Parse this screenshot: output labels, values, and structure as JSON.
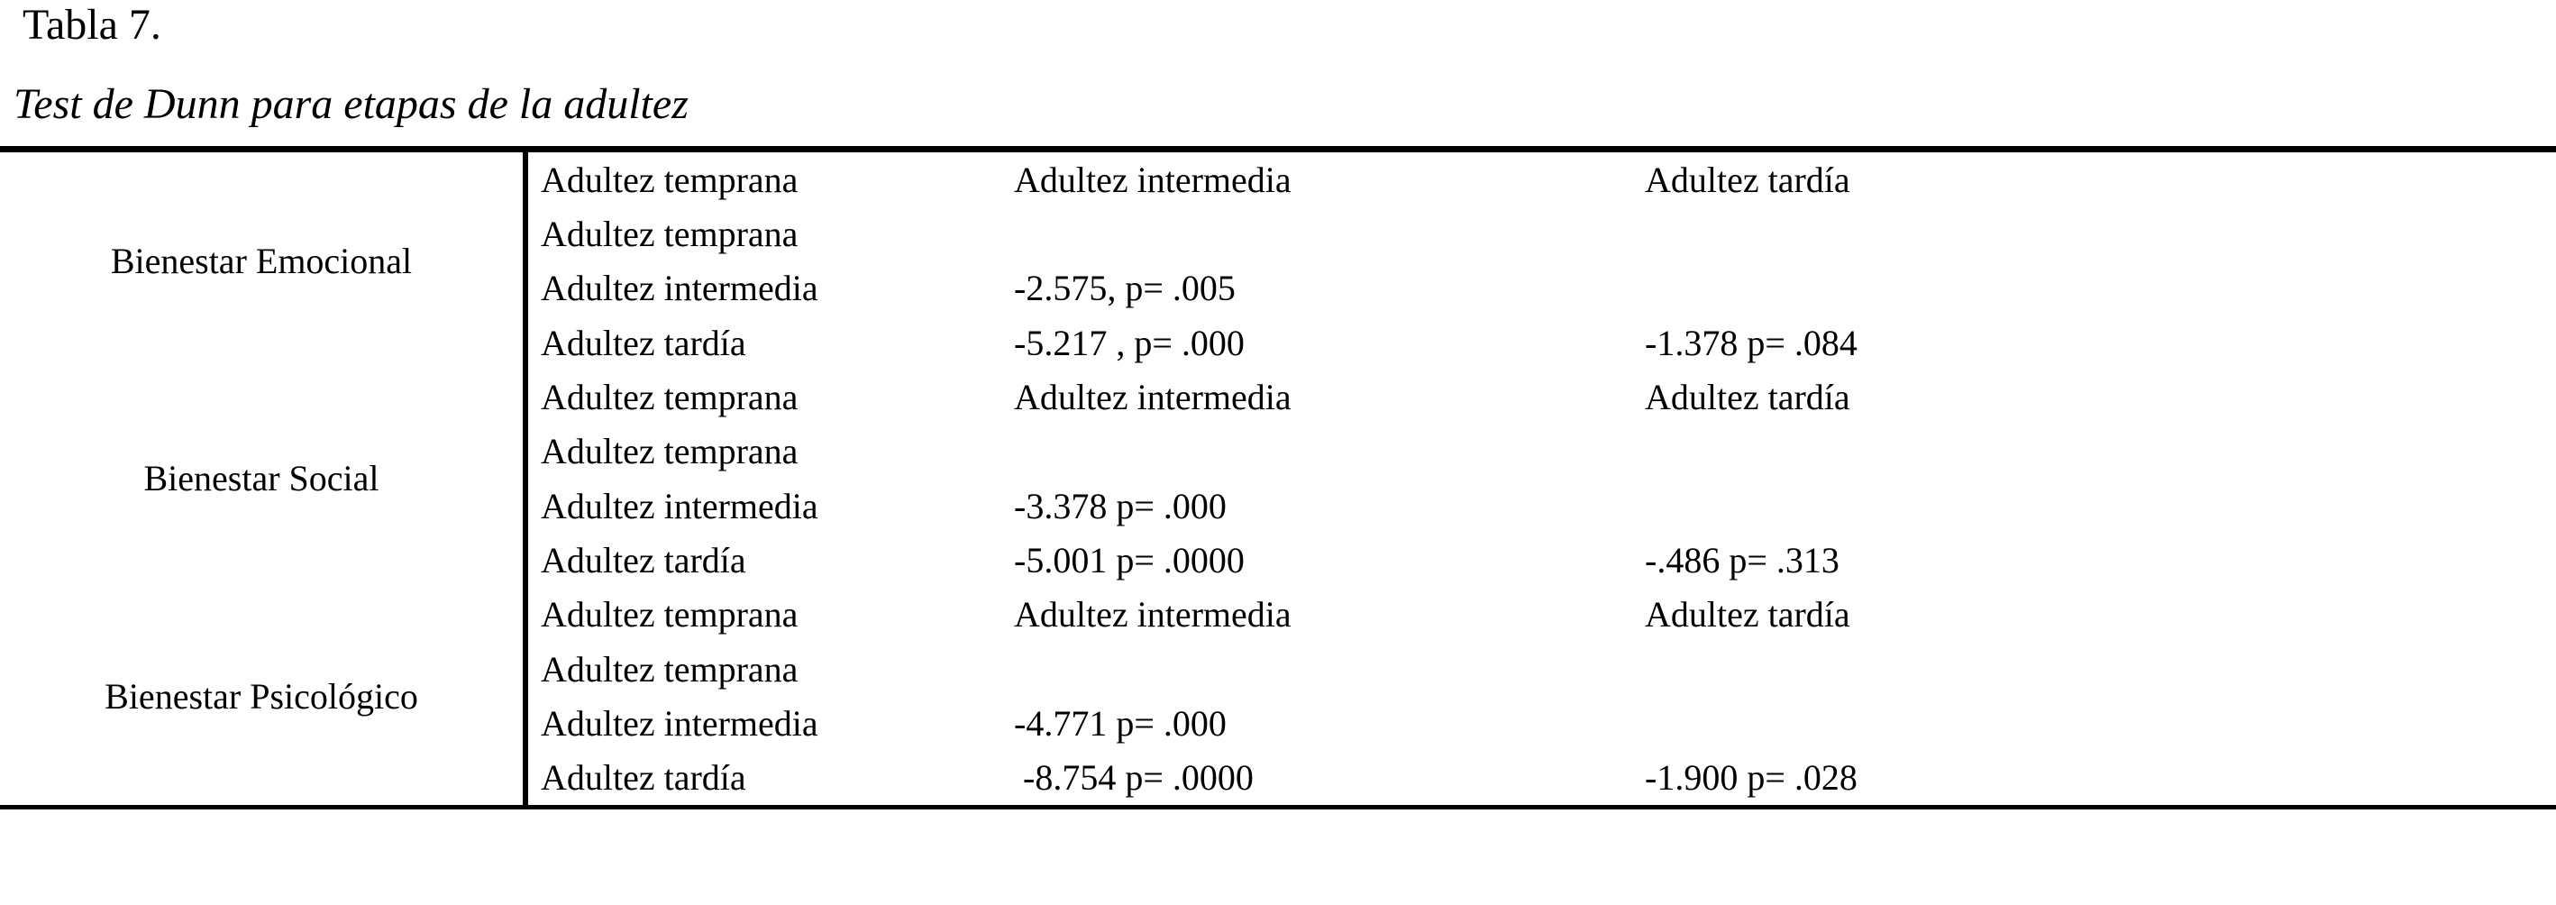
{
  "page": {
    "title": "Tabla 7.",
    "subtitle": "Test de Dunn para etapas de la adultez"
  },
  "table": {
    "column_headers": [
      "Adultez temprana",
      "Adultez intermedia",
      "Adultez tardía"
    ],
    "sections": [
      {
        "group_label": "Bienestar Emocional",
        "rows": [
          {
            "label": "Adultez temprana",
            "values": [
              "",
              "",
              ""
            ]
          },
          {
            "label": "Adultez intermedia",
            "values": [
              "-2.575, p= .005",
              "",
              ""
            ]
          },
          {
            "label": "Adultez tardía",
            "values": [
              "-5.217 , p= .000",
              "-1.378 p= .084",
              ""
            ]
          }
        ]
      },
      {
        "group_label": "Bienestar Social",
        "rows": [
          {
            "label": "Adultez temprana",
            "values": [
              "",
              "",
              ""
            ]
          },
          {
            "label": "Adultez intermedia",
            "values": [
              "-3.378 p= .000",
              "",
              ""
            ]
          },
          {
            "label": "Adultez tardía",
            "values": [
              "-5.001 p= .0000",
              "-.486 p= .313",
              ""
            ]
          }
        ]
      },
      {
        "group_label": "Bienestar Psicológico",
        "rows": [
          {
            "label": "Adultez temprana",
            "values": [
              "",
              "",
              ""
            ]
          },
          {
            "label": "Adultez intermedia",
            "values": [
              "-4.771 p= .000",
              "",
              ""
            ]
          },
          {
            "label": "Adultez tardía",
            "values": [
              " -8.754 p= .0000",
              "-1.900 p= .028",
              ""
            ]
          }
        ]
      }
    ]
  }
}
